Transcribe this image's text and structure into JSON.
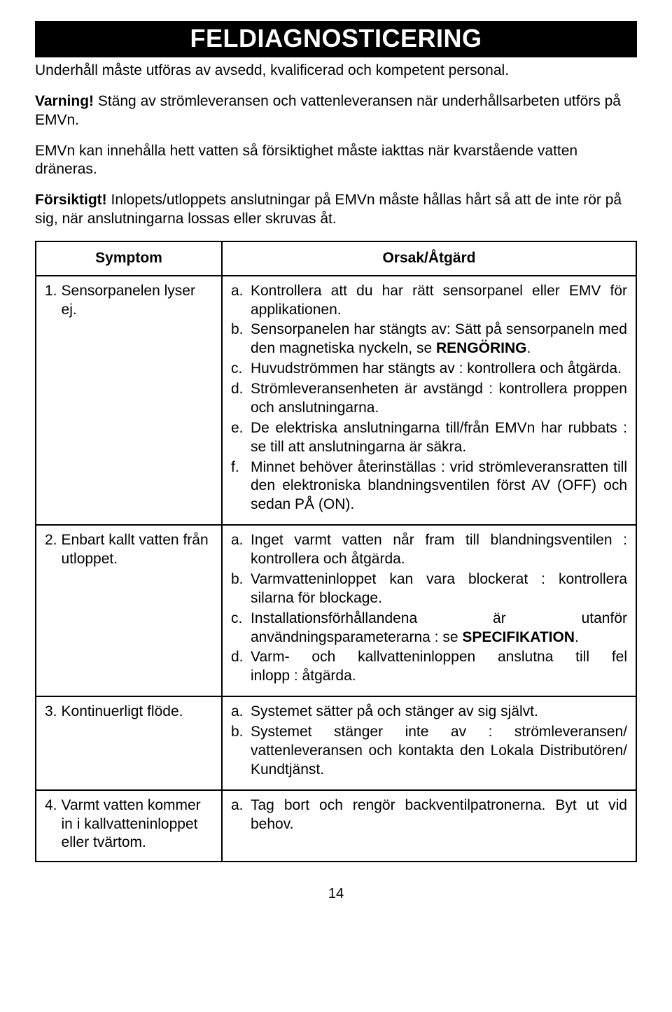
{
  "title": "FELDIAGNOSTICERING",
  "intro": {
    "p1": "Underhåll måste utföras av avsedd, kvalificerad och kompetent personal.",
    "p2_bold": "Varning!",
    "p2_rest": " Stäng av strömleveransen och vattenleveransen när underhållsarbeten utförs på EMVn.",
    "p3": "EMVn kan innehålla hett vatten så försiktighet måste iakttas när kvarstående vatten dräneras.",
    "p4_bold": "Försiktigt!",
    "p4_rest": " Inlopets/utloppets anslutningar på EMVn måste hållas hårt så att de inte rör på sig, när anslutningarna lossas eller skruvas åt."
  },
  "headers": {
    "symptom": "Symptom",
    "action": "Orsak/Åtgärd"
  },
  "rows": [
    {
      "num": "1.",
      "symptom": "Sensorpanelen lyser ej.",
      "items": [
        {
          "l": "a.",
          "t": "Kontrollera att du har rätt sensorpanel eller EMV för applikationen."
        },
        {
          "l": "b.",
          "t": "Sensorpanelen har stängts av: Sätt på sensorpaneln med den magnetiska nyckeln, se <b>RENGÖRING</b>."
        },
        {
          "l": "c.",
          "t": "Huvudströmmen har stängts av : kontrollera och åtgärda."
        },
        {
          "l": "d.",
          "t": "Strömleveransenheten är avstängd : kontrollera proppen och anslutningarna."
        },
        {
          "l": "e.",
          "t": "De elektriska anslutningarna till/från EMVn har rubbats : se till att anslutningarna är säkra."
        },
        {
          "l": "f.",
          "t": "Minnet behöver återinställas : vrid strömleveransratten till den elektroniska blandningsventilen först AV (OFF) och sedan PÅ (ON)."
        }
      ]
    },
    {
      "num": "2.",
      "symptom": "Enbart kallt vatten från utloppet.",
      "items": [
        {
          "l": "a.",
          "t": "Inget varmt vatten når fram till blandningsventilen : kontrollera och åtgärda."
        },
        {
          "l": "b.",
          "t": "Varmvatteninloppet kan vara blockerat : kontrollera silarna för blockage."
        },
        {
          "l": "c.",
          "t": "<span class=\"jwide\" style=\"display:block\">Installationsförhållandena är utanför</span>användningsparameterarna : se <b>SPECIFIKATION</b>."
        },
        {
          "l": "d.",
          "t": "<span class=\"jwide\" style=\"display:block\">Varm- och kallvatteninloppen anslutna till fel</span>inlopp : åtgärda."
        }
      ]
    },
    {
      "num": "3.",
      "symptom": "Kontinuerligt flöde.",
      "items": [
        {
          "l": "a.",
          "t": "Systemet sätter på och stänger av sig självt."
        },
        {
          "l": "b.",
          "t": "<span class=\"jwide\" style=\"display:block\">Systemet stänger inte av : strömleveransen/</span>vattenleveransen och kontakta den Lokala Distributören/ Kundtjänst."
        }
      ]
    },
    {
      "num": "4.",
      "symptom": "Varmt vatten kommer in i kallvatteninloppet eller tvärtom.",
      "items": [
        {
          "l": "a.",
          "t": "Tag bort och rengör backventilpatronerna. Byt ut vid behov."
        }
      ]
    }
  ],
  "page_number": "14"
}
